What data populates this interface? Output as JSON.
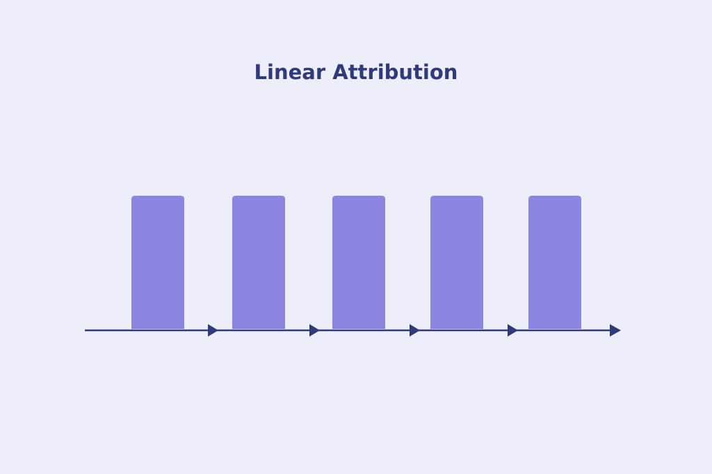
{
  "title": "Linear Attribution"
}
